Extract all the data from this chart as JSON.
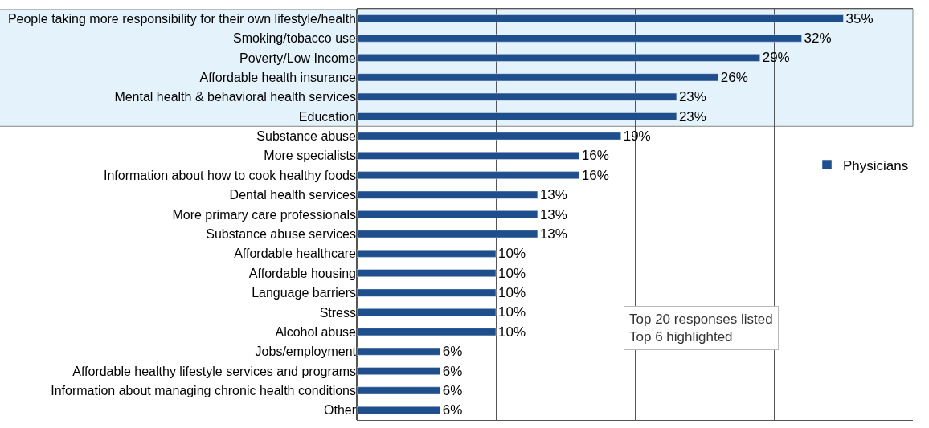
{
  "chart_data": {
    "type": "bar",
    "orientation": "horizontal",
    "categories": [
      "People taking more responsibility for their own lifestyle/health",
      "Smoking/tobacco use",
      "Poverty/Low Income",
      "Affordable health insurance",
      "Mental health & behavioral health services",
      "Education",
      "Substance abuse",
      "More specialists",
      "Information about how to cook healthy foods",
      "Dental health services",
      "More primary care professionals",
      "Substance abuse services",
      "Affordable healthcare",
      "Affordable housing",
      "Language barriers",
      "Stress",
      "Alcohol abuse",
      "Jobs/employment",
      "Affordable healthy lifestyle services and programs",
      "Information about managing chronic health conditions",
      "Other"
    ],
    "series": [
      {
        "name": "Physicians",
        "color": "#1f4e8c",
        "values": [
          35,
          32,
          29,
          26,
          23,
          23,
          19,
          16,
          16,
          13,
          13,
          13,
          10,
          10,
          10,
          10,
          10,
          6,
          6,
          6,
          6
        ],
        "value_labels": [
          "35%",
          "32%",
          "29%",
          "26%",
          "23%",
          "23%",
          "19%",
          "16%",
          "16%",
          "13%",
          "13%",
          "13%",
          "10%",
          "10%",
          "10%",
          "10%",
          "10%",
          "6%",
          "6%",
          "6%",
          "6%"
        ]
      }
    ],
    "xlim": [
      0,
      40
    ],
    "xticks": [
      {
        "value": 0,
        "label": null
      },
      {
        "value": 10,
        "label": null
      },
      {
        "value": 20,
        "label": null
      },
      {
        "value": 30,
        "label": null
      }
    ],
    "tick_labels": "y",
    "grid": "x",
    "legend": "right",
    "bands": [
      {
        "axis": "y",
        "from": "People taking more responsibility for their own lifestyle/health",
        "to": "Education",
        "color": "#e3f2fb"
      }
    ],
    "annotations": [
      "Top 20 responses listed\nTop 6 highlighted"
    ]
  }
}
